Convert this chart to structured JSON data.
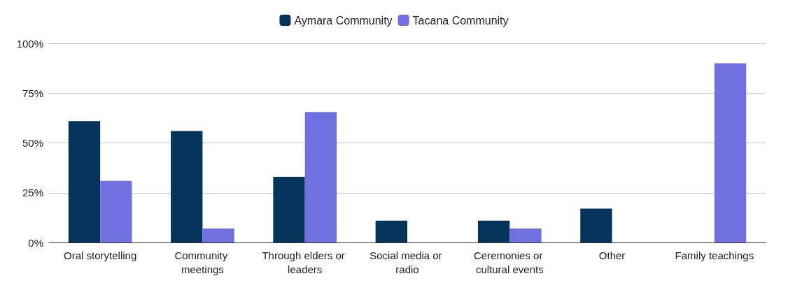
{
  "chart_data": {
    "type": "bar",
    "categories": [
      "Oral storytelling",
      "Community meetings",
      "Through elders or leaders",
      "Social media or radio",
      "Ceremonies or cultural events",
      "Other",
      "Family teachings"
    ],
    "series": [
      {
        "name": "Aymara Community",
        "color": "#06355c",
        "values": [
          61,
          56,
          33,
          11,
          11,
          17,
          0
        ]
      },
      {
        "name": "Tacana Community",
        "color": "#7170e0",
        "values": [
          31,
          7,
          65.5,
          0,
          7,
          0,
          90
        ]
      }
    ],
    "ylim": [
      0,
      100
    ],
    "yticks": [
      {
        "value": 0,
        "label": "0%"
      },
      {
        "value": 25,
        "label": "25%"
      },
      {
        "value": 50,
        "label": "50%"
      },
      {
        "value": 75,
        "label": "75%"
      },
      {
        "value": 100,
        "label": "100%"
      }
    ],
    "grid": "y",
    "legend": "top"
  }
}
